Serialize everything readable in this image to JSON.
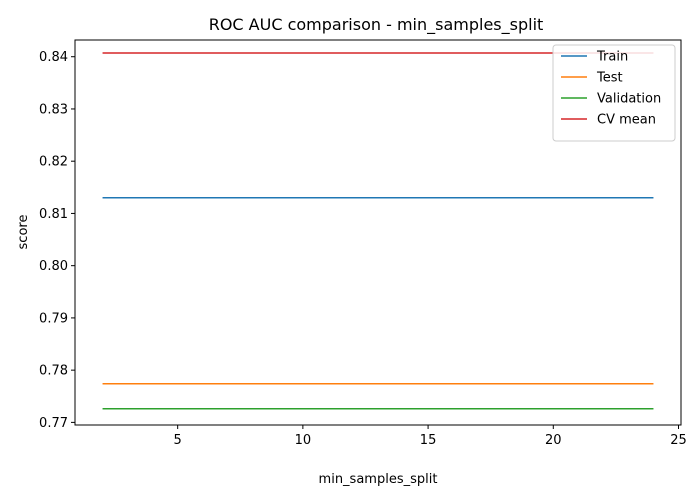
{
  "chart_data": {
    "type": "line",
    "title": "ROC AUC comparison - min_samples_split",
    "xlabel": "min_samples_split",
    "ylabel": "score",
    "x": [
      2,
      24
    ],
    "xlim": [
      0.9,
      25.1
    ],
    "ylim": [
      0.7695,
      0.8432
    ],
    "xticks": [
      5,
      10,
      15,
      20,
      25
    ],
    "yticks": [
      0.77,
      0.78,
      0.79,
      0.8,
      0.81,
      0.82,
      0.83,
      0.84
    ],
    "ytick_labels": [
      "0.77",
      "0.78",
      "0.79",
      "0.80",
      "0.81",
      "0.82",
      "0.83",
      "0.84"
    ],
    "xtick_labels": [
      "5",
      "10",
      "15",
      "20",
      "25"
    ],
    "grid": false,
    "legend_position": "upper right",
    "series": [
      {
        "name": "Train",
        "color": "#1f77b4",
        "values": [
          0.813,
          0.813
        ]
      },
      {
        "name": "Test",
        "color": "#ff7f0e",
        "values": [
          0.7774,
          0.7774
        ]
      },
      {
        "name": "Validation",
        "color": "#2ca02c",
        "values": [
          0.7726,
          0.7726
        ]
      },
      {
        "name": "CV mean",
        "color": "#d62728",
        "values": [
          0.8407,
          0.8407
        ]
      }
    ]
  }
}
